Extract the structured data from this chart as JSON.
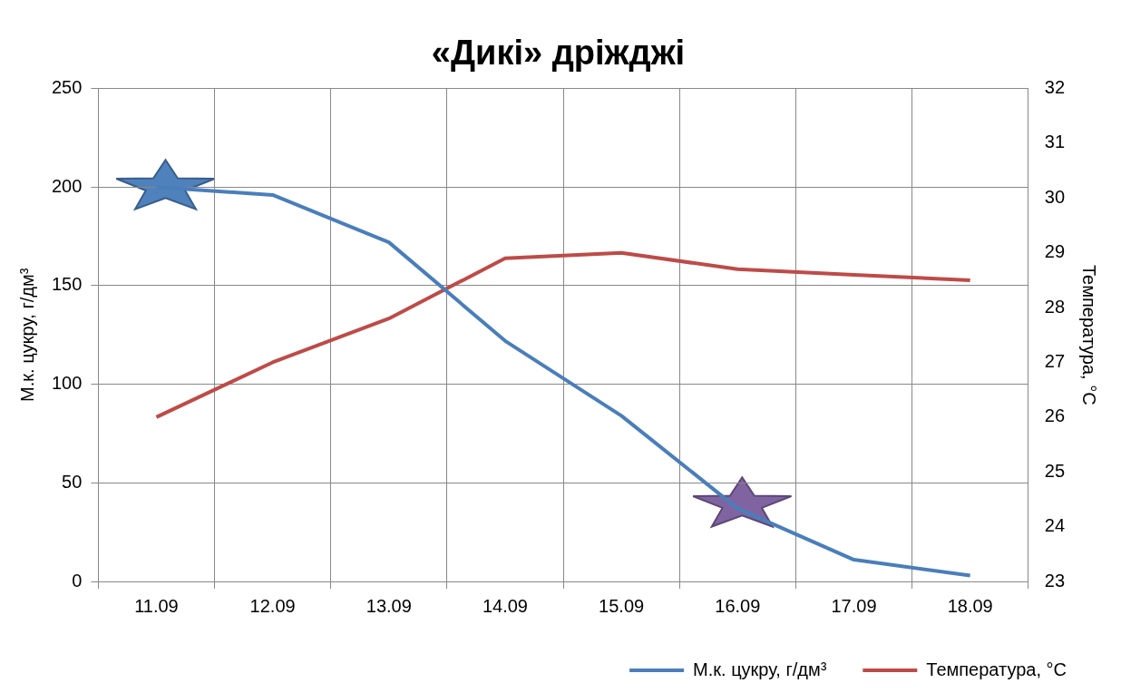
{
  "chart_data": {
    "type": "line",
    "title": "«Дикі» дріжджі",
    "ylabel": "М.к. цукру, г/дм³",
    "y2label": "Температура, °C",
    "categories": [
      "11.09",
      "12.09",
      "13.09",
      "14.09",
      "15.09",
      "16.09",
      "17.09",
      "18.09"
    ],
    "series": [
      {
        "name": "М.к. цукру, г/дм³",
        "color": "#4a7ebb",
        "values": [
          200,
          196,
          172,
          122,
          84,
          37,
          11,
          3
        ]
      },
      {
        "name": "Температура, °C",
        "color": "#be4b48",
        "axis": "y2",
        "values": [
          26.0,
          27.0,
          27.8,
          28.9,
          29.0,
          28.7,
          28.6,
          28.5
        ]
      }
    ],
    "ylim": [
      0,
      250
    ],
    "yticks": [
      0,
      50,
      100,
      150,
      200,
      250
    ],
    "y2lim": [
      23,
      32
    ],
    "y2ticks": [
      23,
      24,
      25,
      26,
      27,
      28,
      29,
      30,
      31,
      32
    ],
    "grid": true,
    "legend": "bottom right",
    "marker": "none",
    "line_style": "solid"
  }
}
